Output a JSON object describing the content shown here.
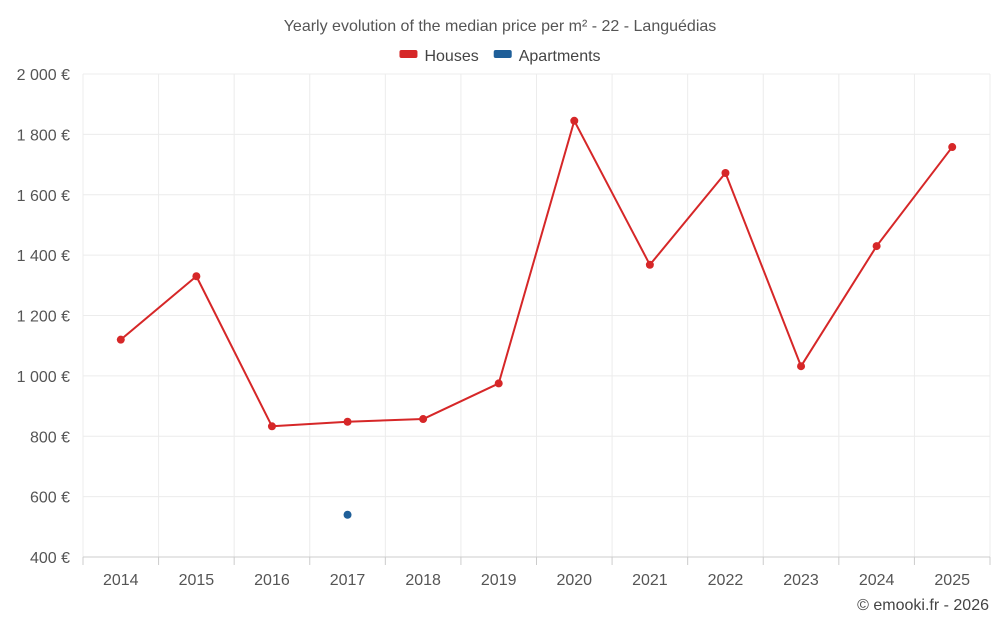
{
  "chart_data": {
    "type": "line",
    "title": "Yearly evolution of the median price per m² - 22 - Languédias",
    "categories": [
      "2014",
      "2015",
      "2016",
      "2017",
      "2018",
      "2019",
      "2020",
      "2021",
      "2022",
      "2023",
      "2024",
      "2025"
    ],
    "series": [
      {
        "name": "Houses",
        "color": "#d62728",
        "values": [
          1120,
          1330,
          833,
          848,
          857,
          975,
          1845,
          1368,
          1672,
          1032,
          1430,
          1758
        ]
      },
      {
        "name": "Apartments",
        "color": "#1f5f99",
        "values": [
          null,
          null,
          null,
          540,
          null,
          null,
          null,
          null,
          null,
          null,
          null,
          null
        ]
      }
    ],
    "ylim": [
      400,
      2000
    ],
    "yticks": [
      400,
      600,
      800,
      1000,
      1200,
      1400,
      1600,
      1800,
      2000
    ],
    "ytick_labels": [
      "400 €",
      "600 €",
      "800 €",
      "1 000 €",
      "1 200 €",
      "1 400 €",
      "1 600 €",
      "1 800 €",
      "2 000 €"
    ],
    "xlabel": "",
    "ylabel": "",
    "legend_position": "top-center",
    "grid": true
  },
  "credit": "© emooki.fr - 2026"
}
